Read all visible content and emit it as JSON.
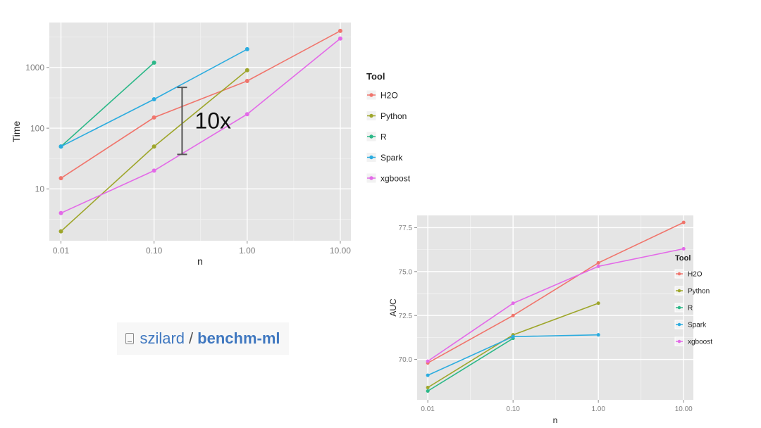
{
  "colors": {
    "H2O": "#f0756c",
    "Python": "#9ea62b",
    "R": "#2cb888",
    "Spark": "#2cacdf",
    "xgboost": "#e36ae8",
    "panel": "#e5e5e5",
    "grid": "#ffffff",
    "annotation": "#555555"
  },
  "chart_data": [
    {
      "type": "line",
      "title": "",
      "xlabel": "n",
      "ylabel": "Time",
      "x_scale": "log",
      "y_scale": "log",
      "x": [
        0.01,
        0.1,
        1.0,
        10.0
      ],
      "x_tick_labels": [
        "0.01",
        "0.10",
        "1.00",
        "10.00"
      ],
      "y_ticks": [
        10,
        100,
        1000
      ],
      "y_tick_labels": [
        "10",
        "100",
        "1000"
      ],
      "xlim": [
        0.0075,
        13
      ],
      "ylim": [
        1.4,
        5500
      ],
      "grid": true,
      "legend_title": "Tool",
      "legend_position": "right",
      "series": [
        {
          "name": "H2O",
          "values": [
            15,
            150,
            600,
            4000
          ]
        },
        {
          "name": "Python",
          "values": [
            2,
            50,
            900,
            null
          ]
        },
        {
          "name": "R",
          "values": [
            50,
            1200,
            null,
            null
          ]
        },
        {
          "name": "Spark",
          "values": [
            50,
            300,
            2000,
            null
          ]
        },
        {
          "name": "xgboost",
          "values": [
            4,
            20,
            170,
            3000
          ]
        }
      ],
      "annotation": {
        "label": "10x",
        "x": 0.2,
        "y_range": [
          37,
          470
        ]
      }
    },
    {
      "type": "line",
      "title": "",
      "xlabel": "n",
      "ylabel": "AUC",
      "x_scale": "log",
      "y_scale": "linear",
      "x": [
        0.01,
        0.1,
        1.0,
        10.0
      ],
      "x_tick_labels": [
        "0.01",
        "0.10",
        "1.00",
        "10.00"
      ],
      "y_ticks": [
        70.0,
        72.5,
        75.0,
        77.5
      ],
      "y_tick_labels": [
        "70.0",
        "72.5",
        "75.0",
        "77.5"
      ],
      "xlim": [
        0.0075,
        13
      ],
      "ylim": [
        67.7,
        78.2
      ],
      "grid": true,
      "legend_title": "Tool",
      "legend_position": "right",
      "series": [
        {
          "name": "H2O",
          "values": [
            69.8,
            72.5,
            75.5,
            77.8
          ]
        },
        {
          "name": "Python",
          "values": [
            68.4,
            71.4,
            73.2,
            null
          ]
        },
        {
          "name": "R",
          "values": [
            68.2,
            71.2,
            null,
            null
          ]
        },
        {
          "name": "Spark",
          "values": [
            69.1,
            71.3,
            71.4,
            null
          ]
        },
        {
          "name": "xgboost",
          "values": [
            69.9,
            73.2,
            75.3,
            76.3
          ]
        }
      ]
    }
  ],
  "repo": {
    "icon": "repo-book-icon",
    "owner": "szilard",
    "separator": "/",
    "name": "benchm-ml"
  }
}
